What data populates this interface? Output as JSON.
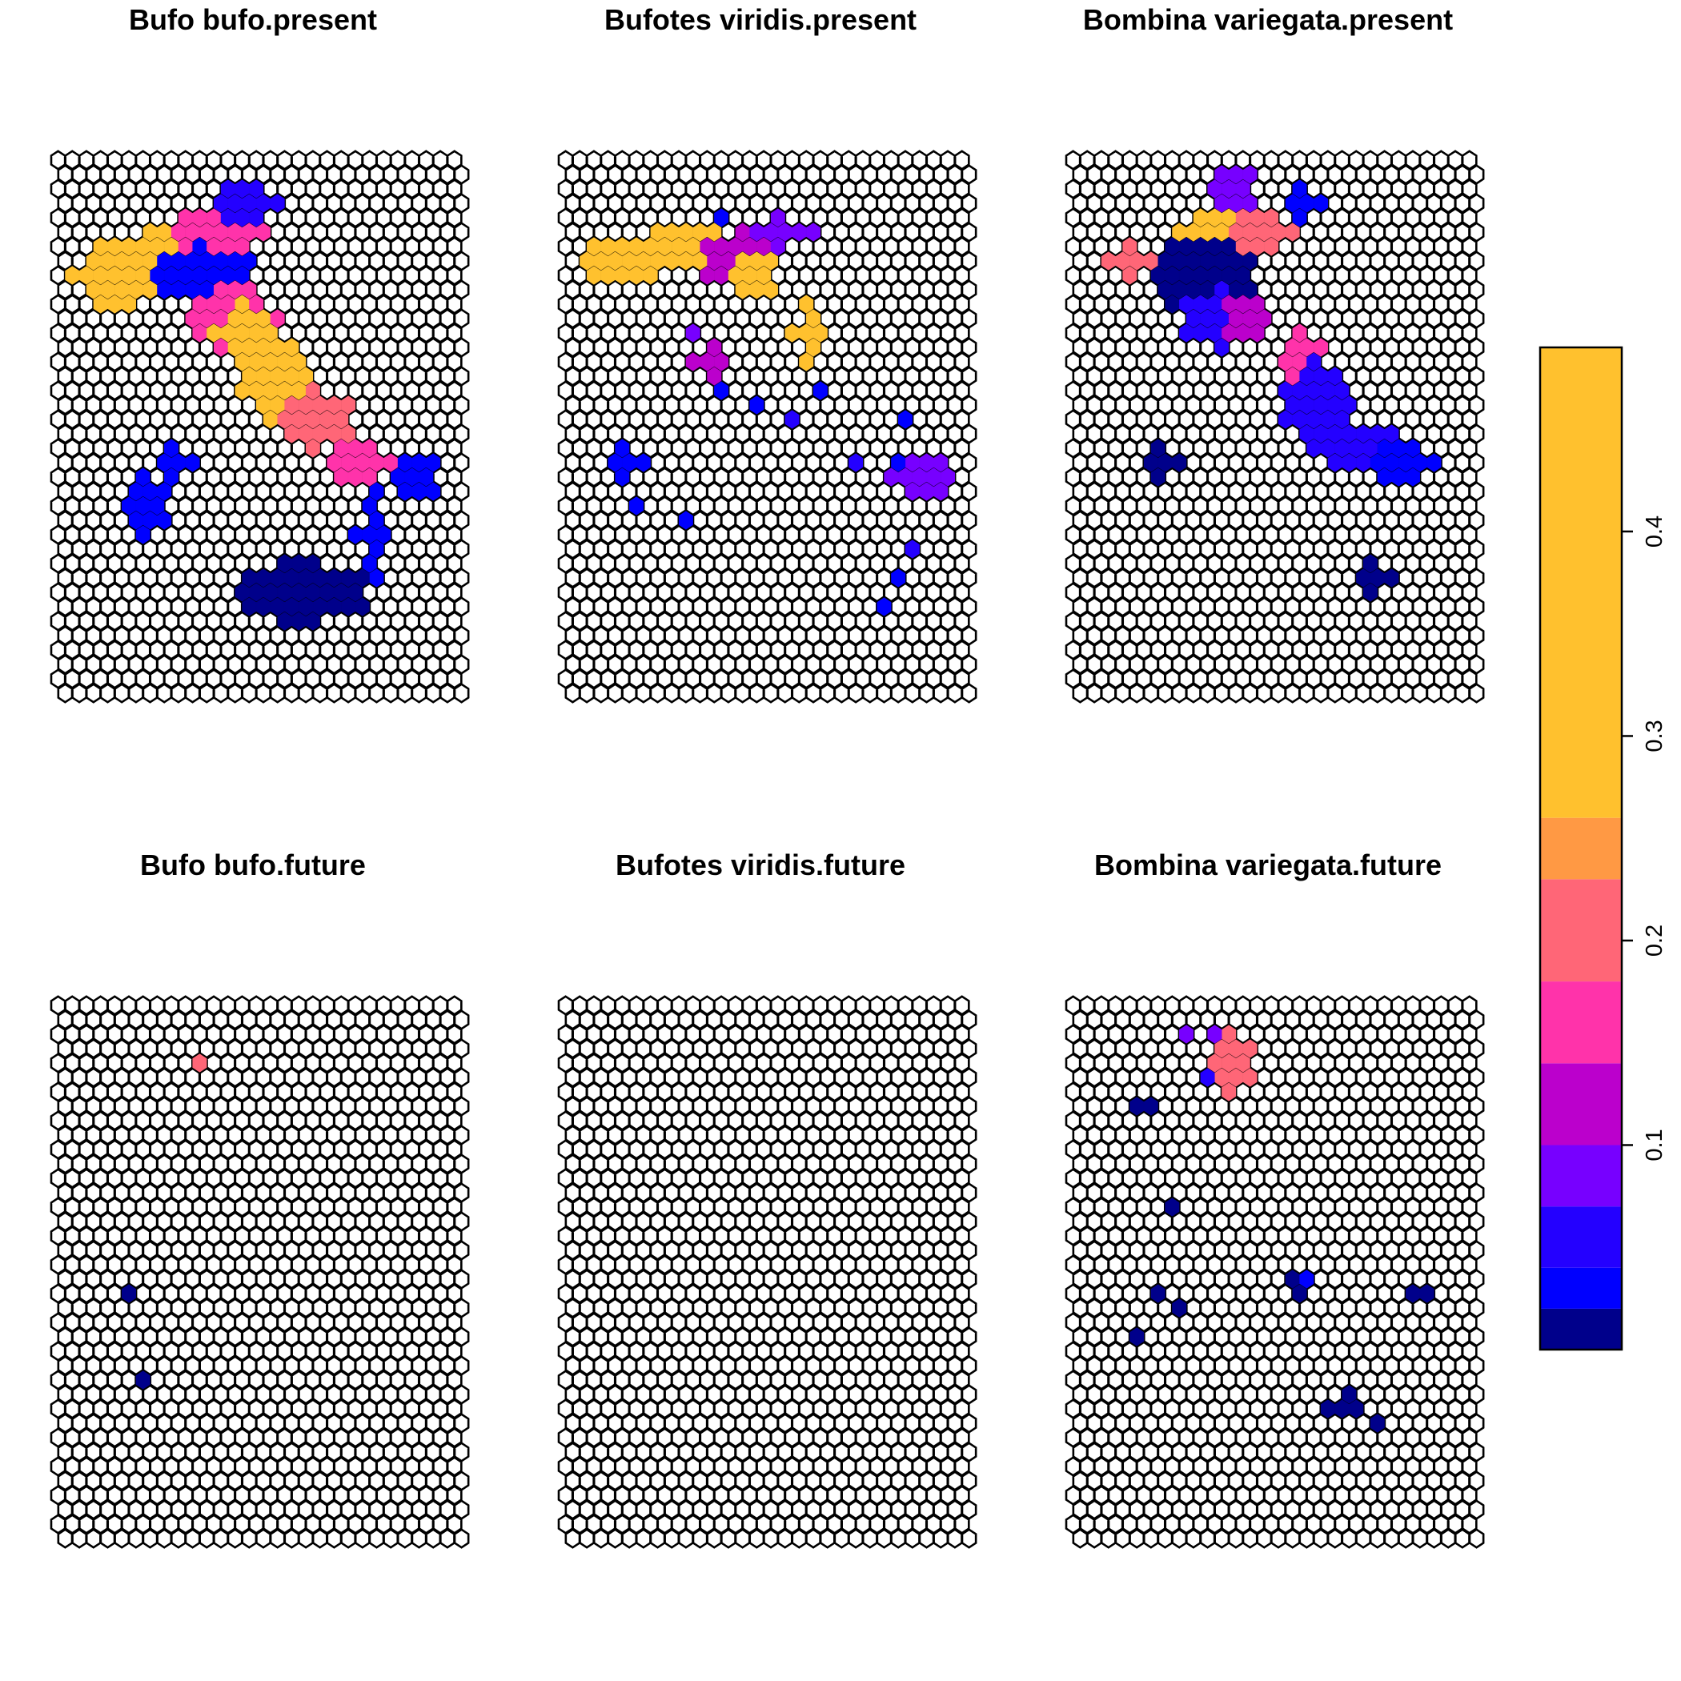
{
  "chart_data": {
    "type": "heatmap",
    "grid": {
      "cols": 29,
      "rows": 38
    },
    "colorbar": {
      "ticks": [
        0.1,
        0.2,
        0.3,
        0.4
      ],
      "tick_labels": [
        "0.1",
        "0.2",
        "0.3",
        "0.4"
      ],
      "range": [
        0,
        0.49
      ],
      "breaks": [
        0,
        0.02,
        0.04,
        0.07,
        0.1,
        0.14,
        0.18,
        0.23,
        0.26,
        0.49
      ],
      "colors": [
        "#00008B",
        "#0000FF",
        "#2400FF",
        "#7700FF",
        "#BB00CC",
        "#FF33AA",
        "#FF6677",
        "#FF9944",
        "#FFC12E",
        "#FFF212"
      ]
    },
    "panels": [
      {
        "title": "Bufo bufo.present",
        "blobs": [
          {
            "col": 4,
            "row": 8,
            "rx": 3.0,
            "ry": 2.2,
            "v": 0.42
          },
          {
            "col": 8,
            "row": 6,
            "rx": 4.0,
            "ry": 1.3,
            "v": 0.32
          },
          {
            "col": 11,
            "row": 5,
            "rx": 3.5,
            "ry": 1.8,
            "v": 0.17
          },
          {
            "col": 13,
            "row": 3,
            "rx": 2.2,
            "ry": 1.5,
            "v": 0.06
          },
          {
            "col": 10,
            "row": 8,
            "rx": 3.5,
            "ry": 2.0,
            "v": 0.02
          },
          {
            "col": 12,
            "row": 11,
            "rx": 3.0,
            "ry": 2.5,
            "v": 0.15
          },
          {
            "col": 13,
            "row": 12,
            "rx": 2.0,
            "ry": 2.0,
            "v": 0.4
          },
          {
            "col": 15,
            "row": 15,
            "rx": 2.5,
            "ry": 3.0,
            "v": 0.35
          },
          {
            "col": 18,
            "row": 18,
            "rx": 2.5,
            "ry": 2.0,
            "v": 0.18
          },
          {
            "col": 21,
            "row": 21,
            "rx": 2.5,
            "ry": 1.5,
            "v": 0.15
          },
          {
            "col": 25,
            "row": 22,
            "rx": 1.5,
            "ry": 1.5,
            "v": 0.03
          },
          {
            "col": 6,
            "row": 24,
            "rx": 1.2,
            "ry": 2.8,
            "v": 0.03
          },
          {
            "col": 8,
            "row": 21,
            "rx": 1.0,
            "ry": 1.0,
            "v": 0.03
          },
          {
            "col": 22,
            "row": 26,
            "rx": 1.0,
            "ry": 3.0,
            "v": 0.03
          },
          {
            "col": 17,
            "row": 30,
            "rx": 4.5,
            "ry": 2.2,
            "v": 0.01
          }
        ]
      },
      {
        "title": "Bufotes viridis.present",
        "blobs": [
          {
            "col": 4,
            "row": 7,
            "rx": 3.0,
            "ry": 1.5,
            "v": 0.38
          },
          {
            "col": 8,
            "row": 6,
            "rx": 4.0,
            "ry": 1.3,
            "v": 0.3
          },
          {
            "col": 12,
            "row": 7,
            "rx": 2.5,
            "ry": 2.0,
            "v": 0.1
          },
          {
            "col": 13,
            "row": 8,
            "rx": 1.5,
            "ry": 1.5,
            "v": 0.4
          },
          {
            "col": 15,
            "row": 5,
            "rx": 2.0,
            "ry": 1.0,
            "v": 0.08
          },
          {
            "col": 17,
            "row": 12,
            "rx": 1.0,
            "ry": 2.0,
            "v": 0.38
          },
          {
            "col": 10,
            "row": 14,
            "rx": 1.0,
            "ry": 1.5,
            "v": 0.12
          },
          {
            "col": 25,
            "row": 22,
            "rx": 2.5,
            "ry": 1.5,
            "v": 0.08
          },
          {
            "col": 4,
            "row": 21,
            "rx": 1.0,
            "ry": 1.0,
            "v": 0.02
          }
        ],
        "cells": [
          {
            "col": 11,
            "row": 4,
            "v": 0.03
          },
          {
            "col": 9,
            "row": 12,
            "v": 0.08
          },
          {
            "col": 11,
            "row": 16,
            "v": 0.03
          },
          {
            "col": 13,
            "row": 17,
            "v": 0.03
          },
          {
            "col": 16,
            "row": 18,
            "v": 0.04
          },
          {
            "col": 18,
            "row": 16,
            "v": 0.03
          },
          {
            "col": 24,
            "row": 18,
            "v": 0.03
          },
          {
            "col": 20,
            "row": 21,
            "v": 0.04
          },
          {
            "col": 23,
            "row": 21,
            "v": 0.03
          },
          {
            "col": 5,
            "row": 24,
            "v": 0.02
          },
          {
            "col": 8,
            "row": 25,
            "v": 0.02
          },
          {
            "col": 24,
            "row": 27,
            "v": 0.04
          },
          {
            "col": 23,
            "row": 29,
            "v": 0.02
          },
          {
            "col": 22,
            "row": 31,
            "v": 0.02
          }
        ]
      },
      {
        "title": "Bombina variegata.present",
        "blobs": [
          {
            "col": 4,
            "row": 7,
            "rx": 2.0,
            "ry": 1.0,
            "v": 0.21
          },
          {
            "col": 10,
            "row": 5,
            "rx": 3.0,
            "ry": 1.3,
            "v": 0.36
          },
          {
            "col": 13,
            "row": 5,
            "rx": 2.0,
            "ry": 1.5,
            "v": 0.22
          },
          {
            "col": 11,
            "row": 2,
            "rx": 1.5,
            "ry": 1.5,
            "v": 0.08
          },
          {
            "col": 16,
            "row": 3,
            "rx": 1.5,
            "ry": 1.0,
            "v": 0.02
          },
          {
            "col": 9,
            "row": 8,
            "rx": 3.5,
            "ry": 2.5,
            "v": 0.015
          },
          {
            "col": 10,
            "row": 11,
            "rx": 2.5,
            "ry": 2.0,
            "v": 0.05
          },
          {
            "col": 12,
            "row": 11,
            "rx": 1.5,
            "ry": 1.5,
            "v": 0.12
          },
          {
            "col": 16,
            "row": 15,
            "rx": 1.6,
            "ry": 3.0,
            "v": 0.17
          },
          {
            "col": 17,
            "row": 17,
            "rx": 2.5,
            "ry": 3.0,
            "v": 0.06
          },
          {
            "col": 20,
            "row": 20,
            "rx": 3.0,
            "ry": 1.5,
            "v": 0.05
          },
          {
            "col": 23,
            "row": 21,
            "rx": 2.0,
            "ry": 1.2,
            "v": 0.03
          },
          {
            "col": 6,
            "row": 21,
            "rx": 1.0,
            "ry": 1.0,
            "v": 0.015
          },
          {
            "col": 21,
            "row": 29,
            "rx": 1.2,
            "ry": 1.0,
            "v": 0.01
          }
        ]
      },
      {
        "title": "Bufo bufo.future",
        "cells": [
          {
            "col": 10,
            "row": 4,
            "v": 0.2
          },
          {
            "col": 5,
            "row": 20,
            "v": 0.01
          },
          {
            "col": 6,
            "row": 26,
            "v": 0.01
          }
        ]
      },
      {
        "title": "Bufotes viridis.future",
        "cells": []
      },
      {
        "title": "Bombina variegata.future",
        "blobs": [
          {
            "col": 11,
            "row": 4,
            "rx": 1.2,
            "ry": 2.0,
            "v": 0.19
          }
        ],
        "cells": [
          {
            "col": 8,
            "row": 2,
            "v": 0.08
          },
          {
            "col": 10,
            "row": 2,
            "v": 0.09
          },
          {
            "col": 9,
            "row": 5,
            "v": 0.05
          },
          {
            "col": 4,
            "row": 7,
            "v": 0.01
          },
          {
            "col": 5,
            "row": 7,
            "v": 0.01
          },
          {
            "col": 7,
            "row": 14,
            "v": 0.01
          },
          {
            "col": 6,
            "row": 20,
            "v": 0.01
          },
          {
            "col": 7,
            "row": 21,
            "v": 0.01
          },
          {
            "col": 15,
            "row": 19,
            "v": 0.01
          },
          {
            "col": 16,
            "row": 20,
            "v": 0.01
          },
          {
            "col": 16,
            "row": 19,
            "v": 0.02
          },
          {
            "col": 24,
            "row": 20,
            "v": 0.01
          },
          {
            "col": 25,
            "row": 20,
            "v": 0.01
          },
          {
            "col": 4,
            "row": 23,
            "v": 0.01
          },
          {
            "col": 19,
            "row": 27,
            "v": 0.01
          },
          {
            "col": 20,
            "row": 28,
            "v": 0.01
          },
          {
            "col": 19,
            "row": 28,
            "v": 0.01
          },
          {
            "col": 18,
            "row": 28,
            "v": 0.01
          },
          {
            "col": 21,
            "row": 29,
            "v": 0.01
          }
        ]
      }
    ]
  }
}
